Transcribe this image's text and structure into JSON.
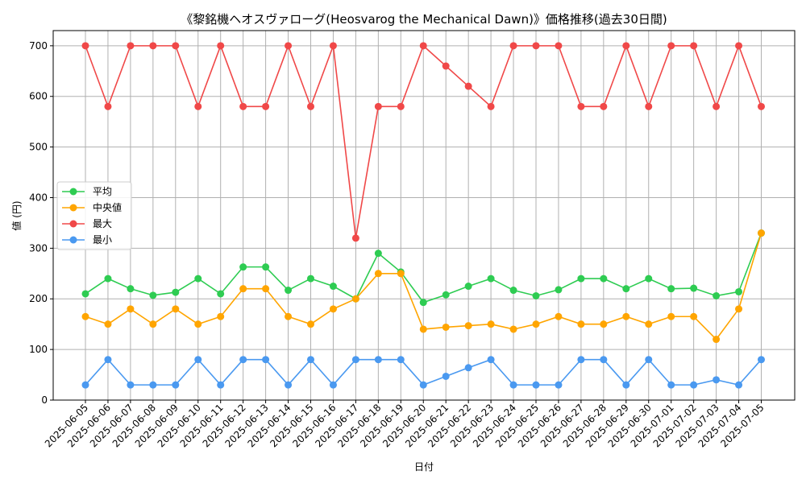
{
  "chart_data": {
    "type": "line",
    "title": "《黎銘機ヘオスヴァローグ(Heosvarog the Mechanical Dawn)》価格推移(過去30日間)",
    "xlabel": "日付",
    "ylabel": "値 (円)",
    "ylim": [
      0,
      730
    ],
    "yticks": [
      0,
      100,
      200,
      300,
      400,
      500,
      600,
      700
    ],
    "grid": true,
    "legend_position": "center-left",
    "categories": [
      "2025-06-05",
      "2025-06-06",
      "2025-06-07",
      "2025-06-08",
      "2025-06-09",
      "2025-06-10",
      "2025-06-11",
      "2025-06-12",
      "2025-06-13",
      "2025-06-14",
      "2025-06-15",
      "2025-06-16",
      "2025-06-17",
      "2025-06-18",
      "2025-06-19",
      "2025-06-20",
      "2025-06-21",
      "2025-06-22",
      "2025-06-23",
      "2025-06-24",
      "2025-06-25",
      "2025-06-26",
      "2025-06-27",
      "2025-06-28",
      "2025-06-29",
      "2025-06-30",
      "2025-07-01",
      "2025-07-02",
      "2025-07-03",
      "2025-07-04",
      "2025-07-05"
    ],
    "series": [
      {
        "name": "平均",
        "color": "#2ecc52",
        "values": [
          210,
          240,
          220,
          207,
          213,
          240,
          210,
          263,
          263,
          217,
          240,
          225,
          200,
          290,
          253,
          193,
          208,
          225,
          240,
          217,
          206,
          218,
          240,
          240,
          220,
          240,
          220,
          221,
          206,
          214,
          330
        ]
      },
      {
        "name": "中央値",
        "color": "#ffa500",
        "values": [
          165,
          150,
          180,
          150,
          180,
          150,
          165,
          220,
          220,
          165,
          150,
          180,
          200,
          250,
          250,
          140,
          144,
          147,
          150,
          140,
          150,
          165,
          150,
          150,
          165,
          150,
          165,
          165,
          120,
          180,
          330
        ]
      },
      {
        "name": "最大",
        "color": "#f04848",
        "values": [
          700,
          580,
          700,
          700,
          700,
          580,
          700,
          580,
          580,
          700,
          580,
          700,
          320,
          580,
          580,
          700,
          660,
          620,
          580,
          700,
          700,
          700,
          580,
          580,
          700,
          580,
          700,
          700,
          580,
          700,
          580
        ]
      },
      {
        "name": "最小",
        "color": "#4a99f0",
        "values": [
          30,
          80,
          30,
          30,
          30,
          80,
          30,
          80,
          80,
          30,
          80,
          30,
          80,
          80,
          80,
          30,
          47,
          64,
          80,
          30,
          30,
          30,
          80,
          80,
          30,
          80,
          30,
          30,
          40,
          30,
          80
        ]
      }
    ]
  }
}
